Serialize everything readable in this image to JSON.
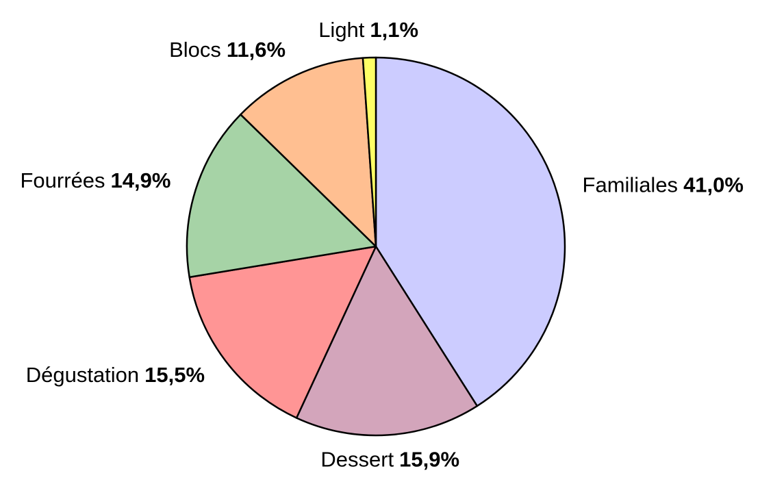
{
  "chart_data": {
    "type": "pie",
    "categories": [
      "Familiales",
      "Dessert",
      "Dégustation",
      "Fourrées",
      "Blocs",
      "Light"
    ],
    "values": [
      41.0,
      15.9,
      15.5,
      14.9,
      11.6,
      1.1
    ],
    "value_labels": [
      "41,0%",
      "15,9%",
      "15,5%",
      "14,9%",
      "11,6%",
      "1,1%"
    ],
    "colors": [
      "#ccccff",
      "#d3a5bb",
      "#ff9595",
      "#a6d3a6",
      "#ffbf91",
      "#ffff66"
    ]
  }
}
